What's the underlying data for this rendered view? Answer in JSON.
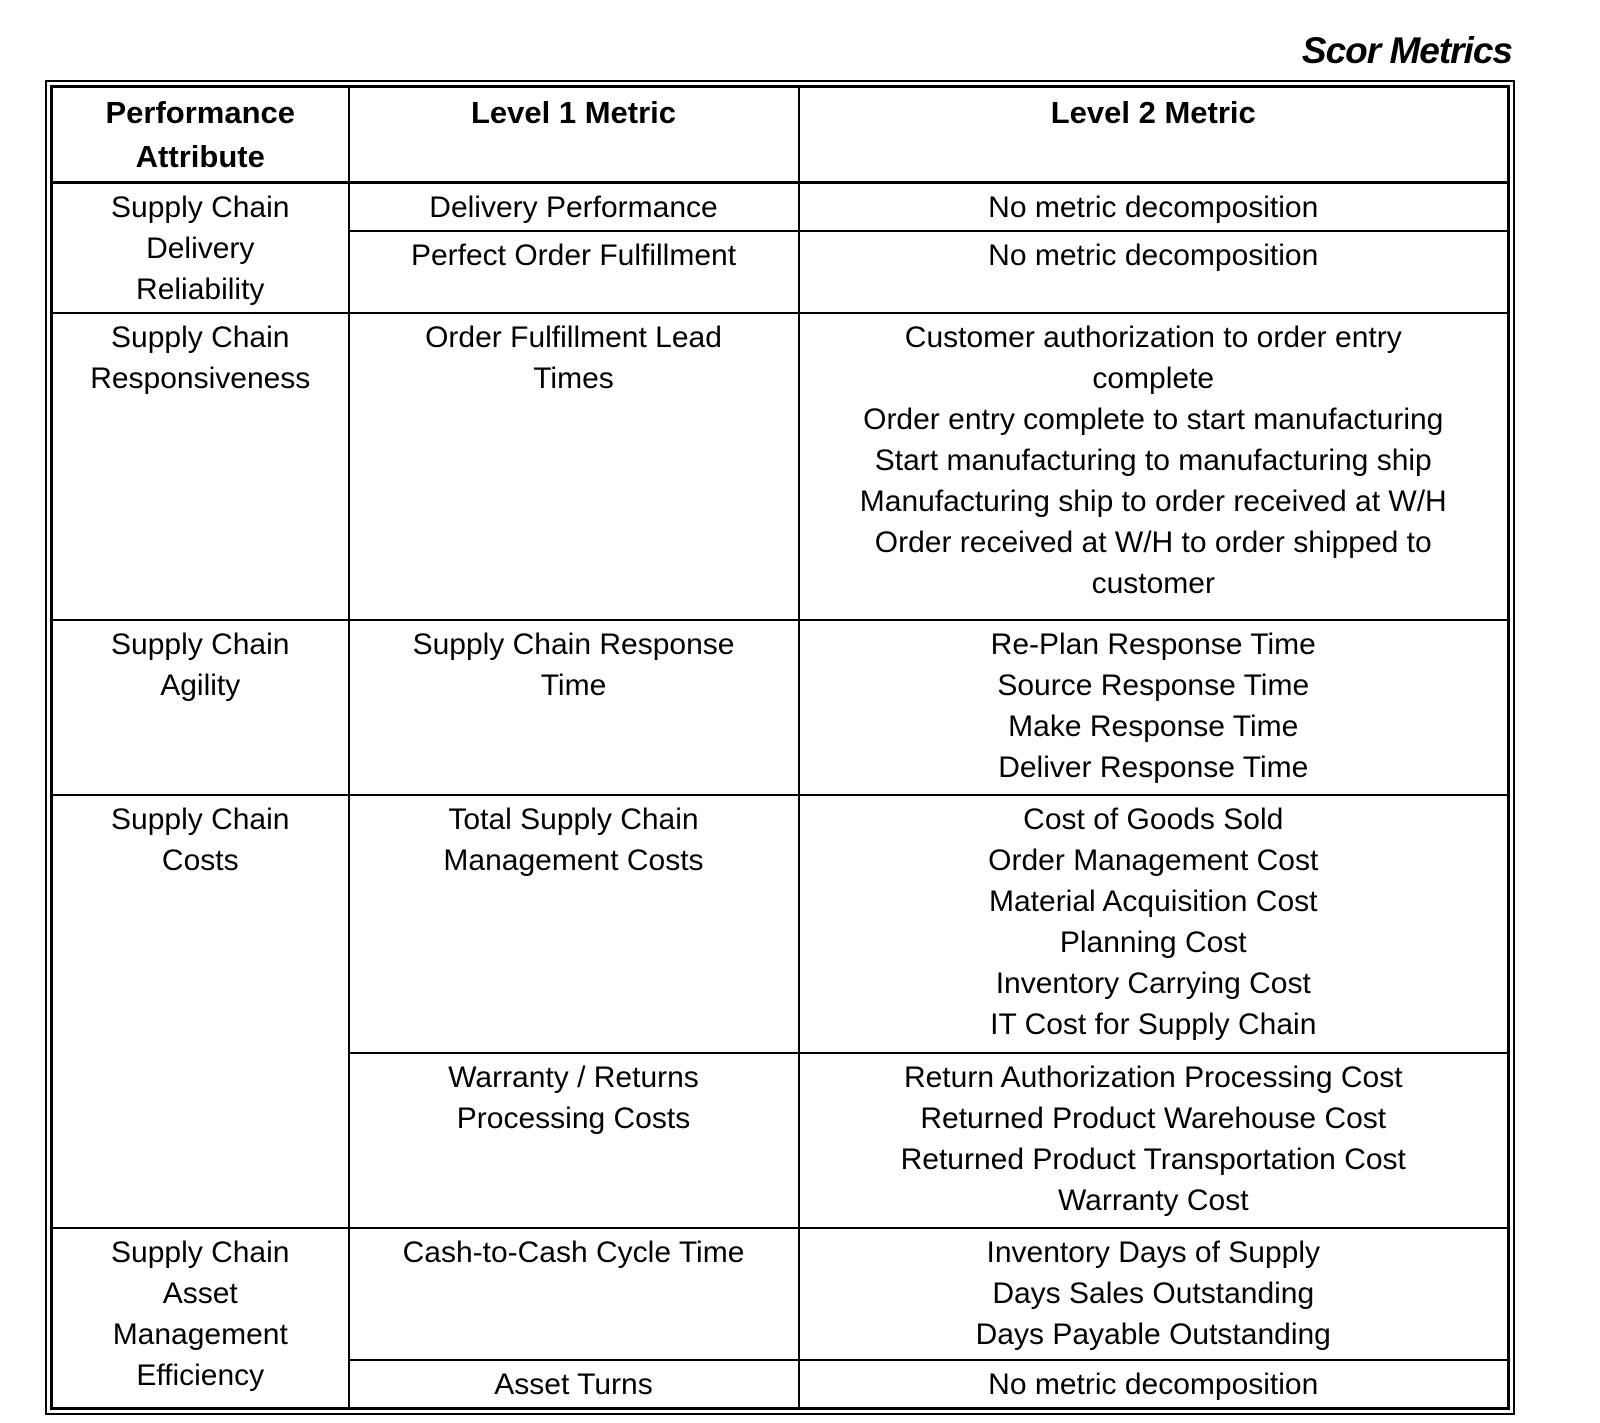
{
  "page_title": "Scor Metrics",
  "table": {
    "headers": [
      "Performance\nAttribute",
      "Level 1 Metric",
      "Level 2 Metric"
    ],
    "sections": [
      {
        "attribute": "Supply Chain\nDelivery\nReliability",
        "rows": [
          {
            "level1": "Delivery Performance",
            "level2": [
              "No metric decomposition"
            ]
          },
          {
            "level1": "Perfect Order Fulfillment",
            "level2": [
              "No metric decomposition"
            ]
          }
        ]
      },
      {
        "attribute": "Supply Chain\nResponsiveness",
        "rows": [
          {
            "level1": "Order Fulfillment Lead\nTimes",
            "level2": [
              "Customer authorization to order entry\ncomplete",
              "Order entry complete to start manufacturing",
              "Start manufacturing to manufacturing ship",
              "Manufacturing ship to order received at W/H",
              "Order received at W/H to order shipped to\ncustomer"
            ]
          }
        ]
      },
      {
        "attribute": "Supply Chain\nAgility",
        "rows": [
          {
            "level1": "Supply Chain Response\nTime",
            "level2": [
              "Re-Plan Response Time",
              "Source Response Time",
              "Make Response Time",
              "Deliver Response Time"
            ]
          }
        ]
      },
      {
        "attribute": "Supply Chain\nCosts",
        "rows": [
          {
            "level1": "Total Supply Chain\nManagement Costs",
            "level2": [
              "Cost of Goods Sold",
              "Order Management Cost",
              "Material Acquisition Cost",
              "Planning Cost",
              "Inventory Carrying Cost",
              "IT Cost for Supply Chain"
            ]
          },
          {
            "level1": "Warranty / Returns\nProcessing Costs",
            "level2": [
              "Return Authorization Processing Cost",
              "Returned Product Warehouse Cost",
              "Returned Product Transportation Cost",
              "Warranty Cost"
            ]
          }
        ]
      },
      {
        "attribute": "Supply Chain\nAsset\nManagement\nEfficiency",
        "rows": [
          {
            "level1": "Cash-to-Cash Cycle Time",
            "level2": [
              "Inventory Days of Supply",
              "Days Sales Outstanding",
              "Days Payable Outstanding"
            ]
          },
          {
            "level1": "Asset Turns",
            "level2": [
              "No metric decomposition"
            ]
          }
        ]
      }
    ]
  }
}
